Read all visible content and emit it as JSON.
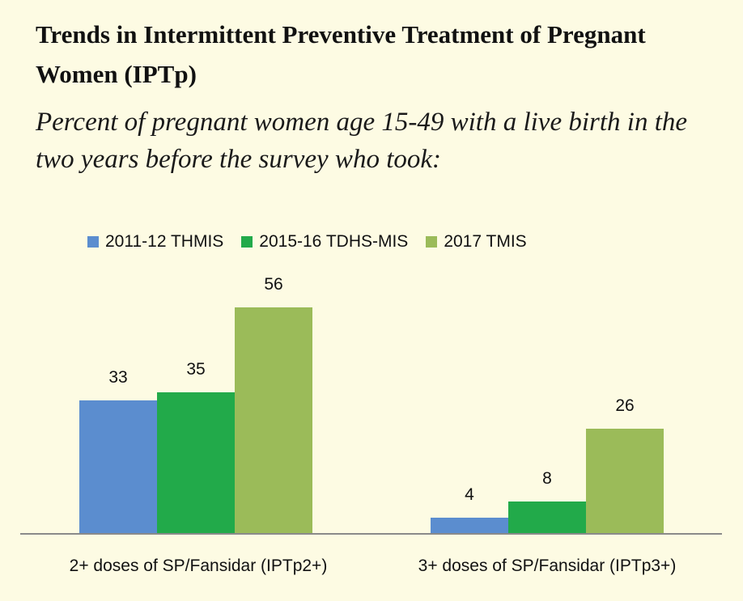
{
  "title": "Trends in Intermittent Preventive Treatment of Pregnant Women (IPTp)",
  "subtitle": "Percent of pregnant women age 15-49 with a live birth in the two years before the survey who took:",
  "chart_data": {
    "type": "bar",
    "categories": [
      "2+ doses of SP/Fansidar (IPTp2+)",
      "3+ doses of SP/Fansidar (IPTp3+)"
    ],
    "series": [
      {
        "name": "2011-12 THMIS",
        "values": [
          33,
          4
        ],
        "color": "#5b8dcf"
      },
      {
        "name": "2015-16 TDHS-MIS",
        "values": [
          35,
          8
        ],
        "color": "#22aa4a"
      },
      {
        "name": "2017 TMIS",
        "values": [
          56,
          26
        ],
        "color": "#9bbb59"
      }
    ],
    "xlabel": "",
    "ylabel": "",
    "ylim": [
      0,
      60
    ],
    "legend_position": "top",
    "grid": false,
    "data_labels": true
  }
}
